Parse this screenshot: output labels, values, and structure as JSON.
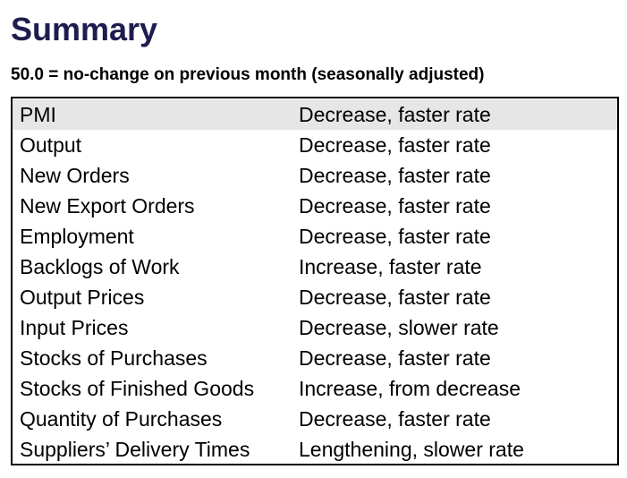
{
  "page": {
    "title": "Summary",
    "subtitle": "50.0 = no-change on previous month (seasonally adjusted)",
    "highlight_color": "#e6e6e6",
    "title_color": "#1f1c4f"
  },
  "table": {
    "rows": [
      {
        "indicator": "PMI",
        "status": "Decrease, faster rate"
      },
      {
        "indicator": "Output",
        "status": "Decrease, faster rate"
      },
      {
        "indicator": "New Orders",
        "status": "Decrease, faster rate"
      },
      {
        "indicator": "New Export Orders",
        "status": "Decrease, faster rate"
      },
      {
        "indicator": "Employment",
        "status": "Decrease, faster rate"
      },
      {
        "indicator": "Backlogs of Work",
        "status": "Increase, faster rate"
      },
      {
        "indicator": "Output Prices",
        "status": "Decrease, faster rate"
      },
      {
        "indicator": "Input Prices",
        "status": "Decrease, slower rate"
      },
      {
        "indicator": "Stocks of Purchases",
        "status": "Decrease, faster rate"
      },
      {
        "indicator": "Stocks of Finished Goods",
        "status": "Increase, from decrease"
      },
      {
        "indicator": "Quantity of Purchases",
        "status": "Decrease, faster rate"
      },
      {
        "indicator": "Suppliers’ Delivery Times",
        "status": "Lengthening, slower rate"
      }
    ]
  }
}
